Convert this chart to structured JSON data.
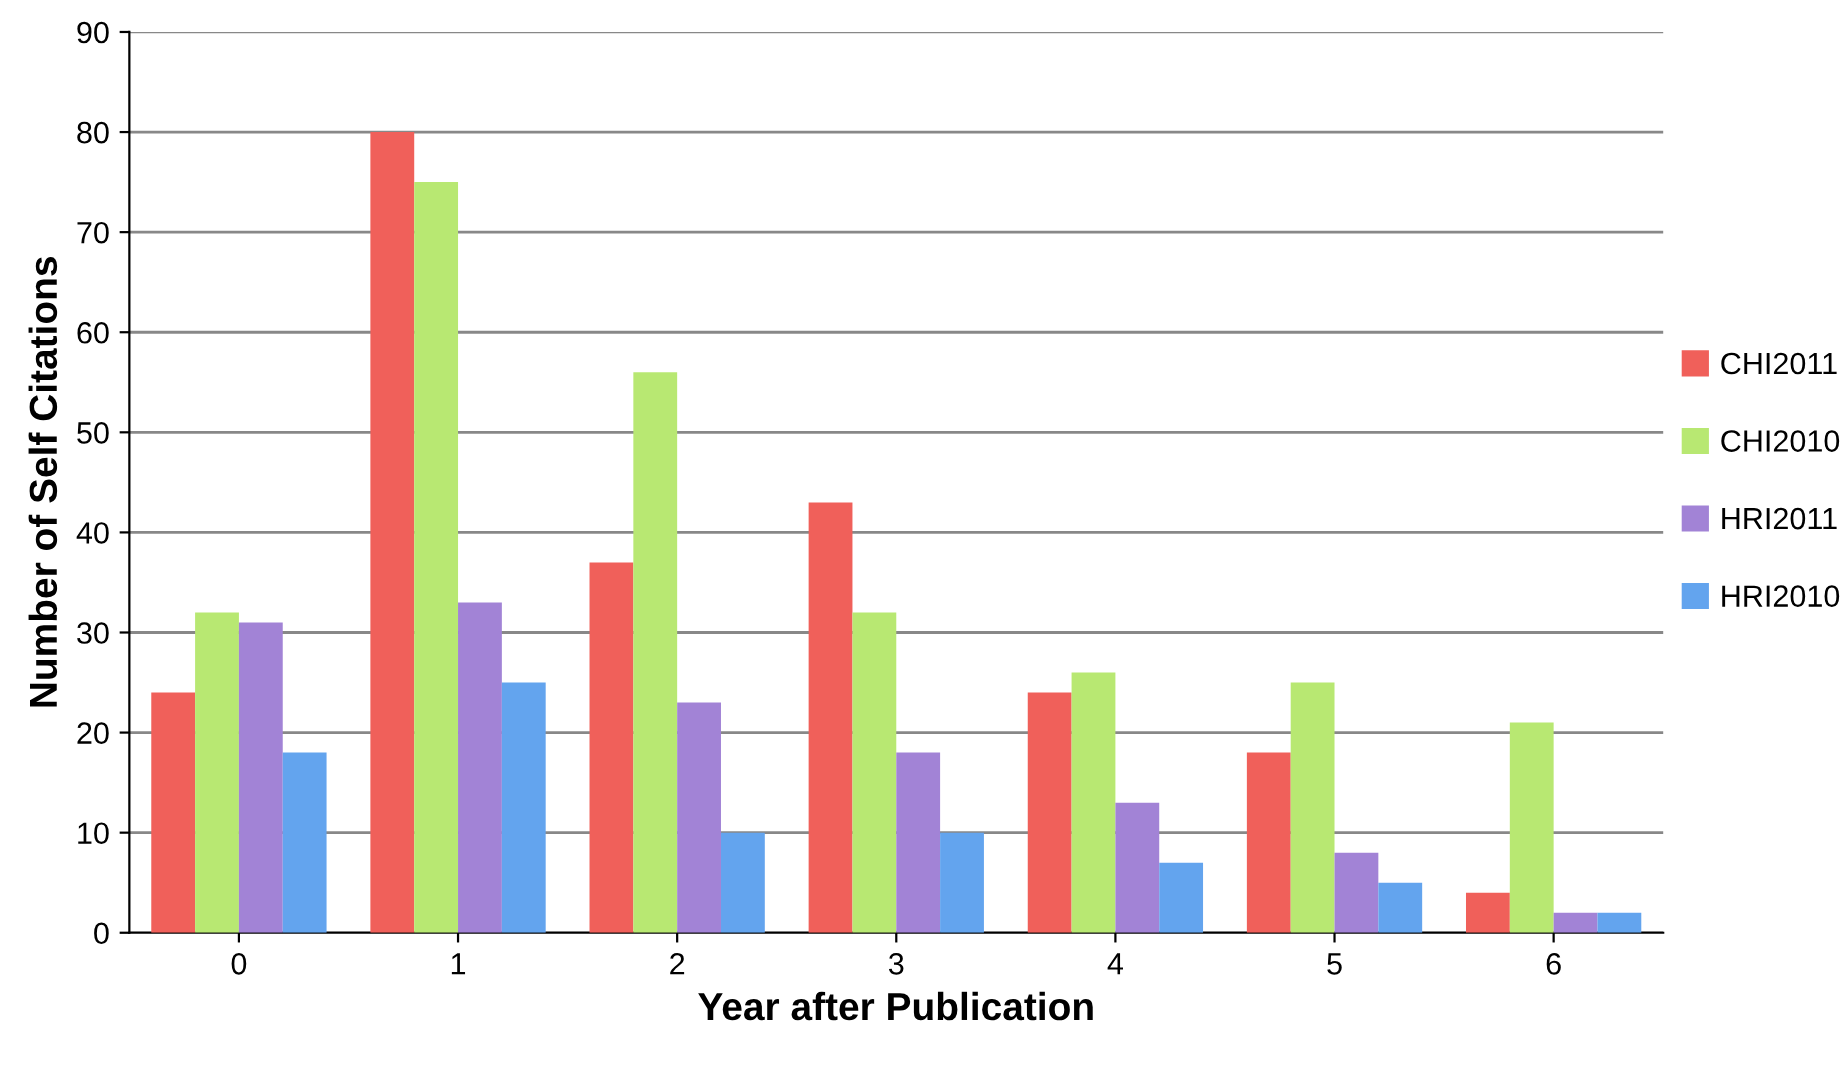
{
  "chart_data": {
    "type": "bar",
    "xlabel": "Year after Publication",
    "ylabel": "Number of Self Citations",
    "categories": [
      "0",
      "1",
      "2",
      "3",
      "4",
      "5",
      "6"
    ],
    "series": [
      {
        "name": "CHI2011",
        "color": "#f0605a",
        "values": [
          24,
          80,
          37,
          43,
          24,
          18,
          4
        ]
      },
      {
        "name": "CHI2010",
        "color": "#b8e872",
        "values": [
          32,
          75,
          56,
          32,
          26,
          25,
          21
        ]
      },
      {
        "name": "HRI2011",
        "color": "#a283d6",
        "values": [
          31,
          33,
          23,
          18,
          13,
          8,
          2
        ]
      },
      {
        "name": "HRI2010",
        "color": "#63a4ee",
        "values": [
          18,
          25,
          10,
          10,
          7,
          5,
          2
        ]
      }
    ],
    "ylim": [
      0,
      90
    ],
    "yticks": [
      0,
      10,
      20,
      30,
      40,
      50,
      60,
      70,
      80,
      90
    ],
    "grid": "y",
    "legend": "right"
  }
}
